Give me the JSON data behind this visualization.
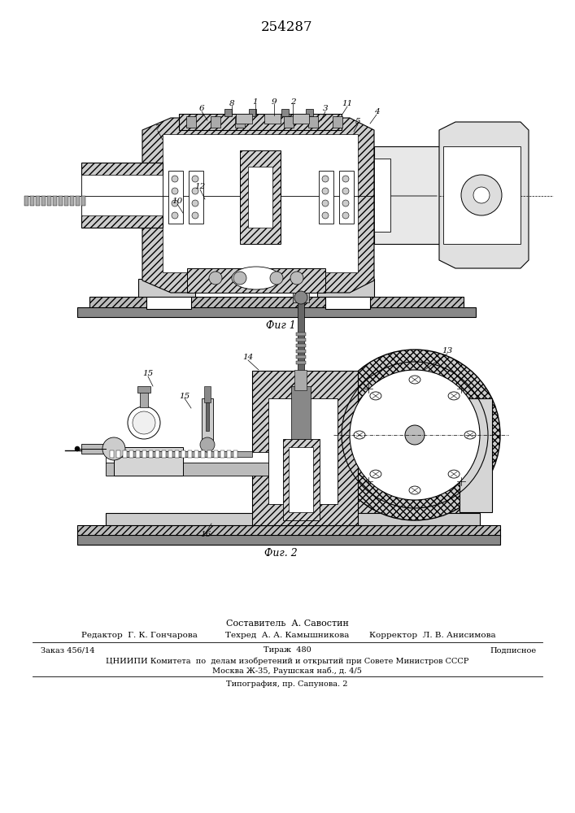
{
  "title": "254287",
  "fig1_caption": "Фиг 1",
  "fig2_caption": "Фиг. 2",
  "footer_line1": "Составитель  А. Савостин",
  "footer_line2_left": "Редактор  Г. К. Гончарова",
  "footer_line2_mid": "Техред  А. А. Камышникова",
  "footer_line2_right": "Корректор  Л. В. Анисимова",
  "footer_line3_left": "Заказ 456/14",
  "footer_line3_mid": "Тираж  480",
  "footer_line3_right": "Подписное",
  "footer_line4": "ЦНИИПИ Комитета  по  делам изобретений и открытий при Совете Министров СССР",
  "footer_line5": "Москва Ж-35, Раушская наб., д. 4/5",
  "footer_line6": "Типография, пр. Сапунова. 2",
  "bg_color": "#ffffff",
  "line_color": "#000000",
  "gray_light": "#d0d0d0",
  "gray_med": "#a0a0a0",
  "gray_dark": "#606060",
  "hatch45": "////",
  "hatch_cross": "xxxx"
}
